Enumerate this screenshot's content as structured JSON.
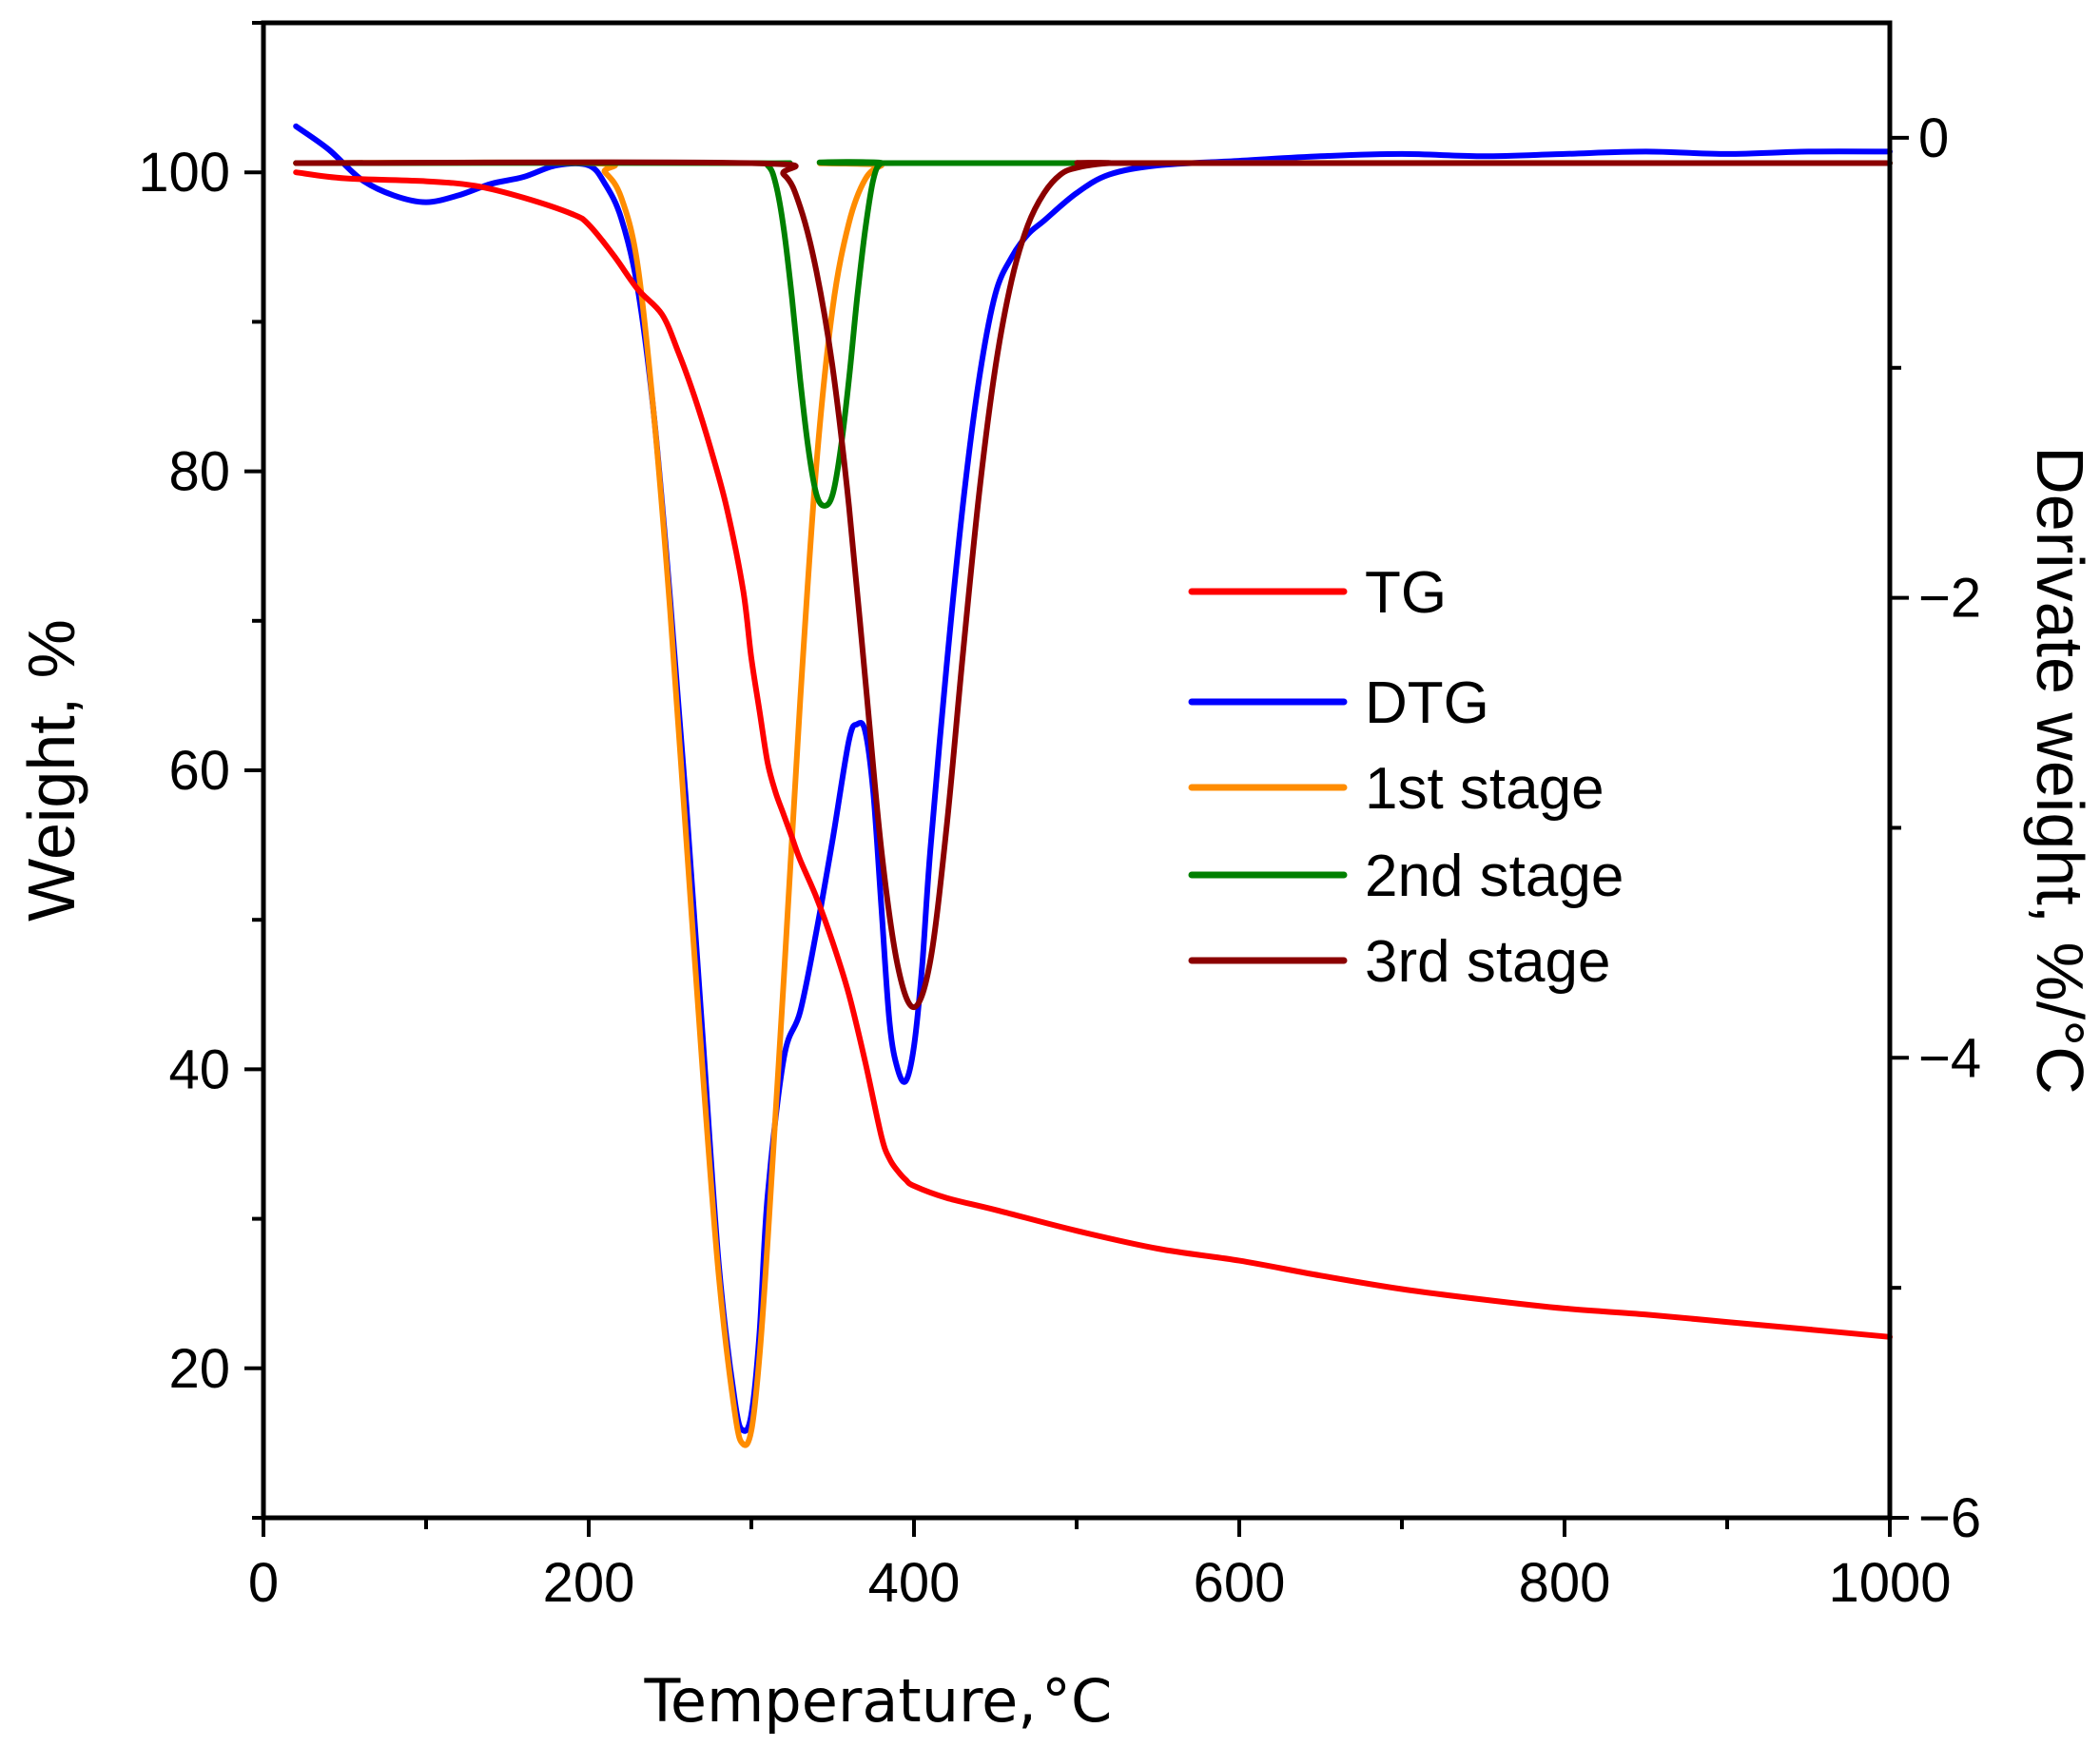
{
  "chart_data": {
    "type": "line",
    "title": "",
    "xlabel": "Temperature,",
    "xlabel_unit": "°C",
    "ylabel_left": "Weight,  %",
    "ylabel_right": "Derivate weight,  %/°C",
    "xlim": [
      0,
      1000
    ],
    "ylim_left": [
      10,
      110
    ],
    "ylim_right": [
      -6,
      0.5
    ],
    "x_ticks": [
      0,
      200,
      400,
      600,
      800,
      1000
    ],
    "x_tick_labels": [
      "0",
      "200",
      "400",
      "600",
      "800",
      "1000"
    ],
    "y_left_ticks": [
      20,
      40,
      60,
      80,
      100
    ],
    "y_left_tick_labels": [
      "20",
      "40",
      "60",
      "80",
      "100"
    ],
    "y_right_ticks": [
      0,
      -2,
      -4,
      -6
    ],
    "y_right_tick_labels": [
      "0",
      "−2",
      "−4",
      "−6"
    ],
    "grid": false,
    "legend_position": "center-right",
    "series": [
      {
        "name": "TG",
        "axis": "left",
        "color": "#ff0000",
        "x": [
          20,
          50,
          100,
          130,
          160,
          190,
          200,
          215,
          230,
          245,
          255,
          265,
          275,
          285,
          295,
          300,
          305,
          310,
          315,
          320,
          325,
          330,
          340,
          350,
          360,
          370,
          380,
          385,
          390,
          395,
          400,
          420,
          450,
          500,
          550,
          600,
          650,
          700,
          750,
          800,
          850,
          900,
          950,
          1000
        ],
        "values": [
          100,
          99.6,
          99.4,
          99.1,
          98.3,
          97.2,
          96.5,
          94.5,
          92.2,
          90.5,
          88.0,
          85.0,
          81.5,
          77.5,
          72.0,
          67.5,
          64.0,
          60.5,
          58.5,
          57.0,
          55.5,
          54.0,
          51.5,
          48.5,
          45.0,
          40.5,
          35.5,
          34.0,
          33.2,
          32.6,
          32.2,
          31.4,
          30.6,
          29.2,
          28.0,
          27.2,
          26.2,
          25.3,
          24.6,
          24.0,
          23.6,
          23.1,
          22.6,
          22.1
        ]
      },
      {
        "name": "DTG",
        "axis": "right",
        "color": "#0000ff",
        "x": [
          20,
          40,
          60,
          80,
          100,
          120,
          140,
          160,
          180,
          200,
          210,
          220,
          230,
          240,
          250,
          260,
          270,
          280,
          290,
          295,
          300,
          305,
          310,
          320,
          330,
          340,
          350,
          360,
          365,
          370,
          375,
          380,
          385,
          390,
          395,
          400,
          405,
          410,
          420,
          430,
          440,
          450,
          460,
          470,
          480,
          500,
          520,
          550,
          600,
          650,
          700,
          750,
          800,
          850,
          900,
          950,
          1000
        ],
        "values": [
          0.05,
          -0.05,
          -0.18,
          -0.25,
          -0.28,
          -0.25,
          -0.2,
          -0.17,
          -0.12,
          -0.12,
          -0.2,
          -0.35,
          -0.65,
          -1.2,
          -2.0,
          -2.9,
          -3.9,
          -4.9,
          -5.5,
          -5.62,
          -5.55,
          -5.2,
          -4.6,
          -4.0,
          -3.8,
          -3.45,
          -3.05,
          -2.62,
          -2.55,
          -2.58,
          -2.85,
          -3.35,
          -3.85,
          -4.05,
          -4.1,
          -3.95,
          -3.6,
          -3.1,
          -2.3,
          -1.6,
          -1.05,
          -0.68,
          -0.52,
          -0.42,
          -0.36,
          -0.24,
          -0.16,
          -0.12,
          -0.1,
          -0.08,
          -0.07,
          -0.08,
          -0.07,
          -0.06,
          -0.07,
          -0.06,
          -0.06
        ]
      },
      {
        "name": "1st stage",
        "axis": "right",
        "color": "#ff8c00",
        "x": [
          20,
          200,
          210,
          220,
          230,
          240,
          250,
          260,
          270,
          280,
          290,
          295,
          300,
          305,
          310,
          320,
          330,
          340,
          350,
          360,
          370,
          380,
          390,
          1000
        ],
        "values": [
          -0.11,
          -0.11,
          -0.15,
          -0.26,
          -0.55,
          -1.2,
          -2.05,
          -3.05,
          -4.05,
          -4.95,
          -5.55,
          -5.68,
          -5.62,
          -5.3,
          -4.8,
          -3.65,
          -2.45,
          -1.42,
          -0.74,
          -0.37,
          -0.18,
          -0.12,
          -0.11,
          -0.11
        ]
      },
      {
        "name": "2nd stage",
        "axis": "right",
        "color": "#008000",
        "x": [
          20,
          300,
          310,
          315,
          320,
          325,
          330,
          335,
          340,
          345,
          350,
          355,
          360,
          365,
          370,
          375,
          380,
          390,
          1000
        ],
        "values": [
          -0.11,
          -0.11,
          -0.12,
          -0.2,
          -0.4,
          -0.7,
          -1.05,
          -1.35,
          -1.55,
          -1.6,
          -1.55,
          -1.35,
          -1.05,
          -0.7,
          -0.4,
          -0.18,
          -0.11,
          -0.11,
          -0.11
        ]
      },
      {
        "name": "3rd stage",
        "axis": "right",
        "color": "#8b0000",
        "x": [
          20,
          300,
          320,
          330,
          340,
          350,
          360,
          370,
          380,
          390,
          400,
          410,
          420,
          430,
          440,
          450,
          460,
          470,
          480,
          490,
          500,
          520,
          540,
          1000
        ],
        "values": [
          -0.11,
          -0.11,
          -0.16,
          -0.3,
          -0.58,
          -1.0,
          -1.6,
          -2.35,
          -3.1,
          -3.6,
          -3.78,
          -3.58,
          -3.0,
          -2.25,
          -1.55,
          -1.0,
          -0.62,
          -0.38,
          -0.24,
          -0.16,
          -0.13,
          -0.11,
          -0.11,
          -0.11
        ]
      }
    ]
  }
}
